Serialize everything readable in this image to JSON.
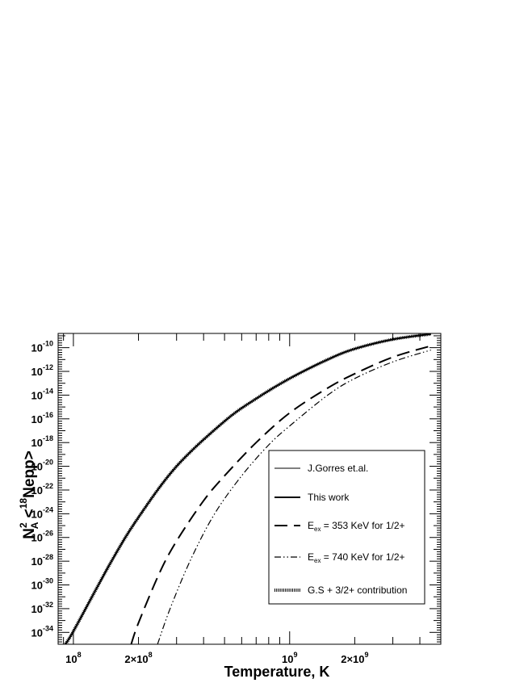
{
  "chart_data": {
    "type": "line",
    "xlabel": "Temperature, K",
    "ylabel_parts": {
      "N": "N",
      "sup2": "2",
      "subA": "A",
      "open": " <",
      "sup18": "18",
      "rest": "Nepp>"
    },
    "x_scale": "log",
    "y_scale": "log",
    "xlim": [
      85000000.0,
      5000000000.0
    ],
    "ylim_exp": [
      -35,
      -8.8
    ],
    "x_major_ticks": [
      {
        "value": 100000000.0,
        "label_base": "10",
        "label_exp": "8"
      },
      {
        "value": 200000000.0,
        "label_base": "2×10",
        "label_exp": "8"
      },
      {
        "value": 1000000000.0,
        "label_base": "10",
        "label_exp": "9"
      },
      {
        "value": 2000000000.0,
        "label_base": "2×10",
        "label_exp": "9"
      }
    ],
    "y_major_ticks": [
      {
        "exp": -34,
        "label_base": "10",
        "label_exp": "-34"
      },
      {
        "exp": -32,
        "label_base": "10",
        "label_exp": "-32"
      },
      {
        "exp": -30,
        "label_base": "10",
        "label_exp": "-30"
      },
      {
        "exp": -28,
        "label_base": "10",
        "label_exp": "-28"
      },
      {
        "exp": -26,
        "label_base": "10",
        "label_exp": "-26"
      },
      {
        "exp": -24,
        "label_base": "10",
        "label_exp": "-24"
      },
      {
        "exp": -22,
        "label_base": "10",
        "label_exp": "-22"
      },
      {
        "exp": -20,
        "label_base": "10",
        "label_exp": "-20"
      },
      {
        "exp": -18,
        "label_base": "10",
        "label_exp": "-18"
      },
      {
        "exp": -16,
        "label_base": "10",
        "label_exp": "-16"
      },
      {
        "exp": -14,
        "label_base": "10",
        "label_exp": "-14"
      },
      {
        "exp": -12,
        "label_base": "10",
        "label_exp": "-12"
      },
      {
        "exp": -10,
        "label_base": "10",
        "label_exp": "-10"
      }
    ],
    "legend_position": "center-right",
    "legend": [
      {
        "series": "gorres",
        "parts": [
          "J.Gorres et.al."
        ]
      },
      {
        "series": "thiswork",
        "parts": [
          "This work"
        ]
      },
      {
        "series": "e353",
        "parts": [
          "E",
          "ex",
          " = 353 KeV for 1/2+"
        ]
      },
      {
        "series": "e740",
        "parts": [
          "E",
          "ex",
          " = 740 KeV for 1/2+"
        ]
      },
      {
        "series": "gs",
        "parts": [
          "G.S + 3/2+ contribution"
        ]
      }
    ],
    "series": [
      {
        "id": "gorres",
        "style": "thin-solid",
        "x": [
          90000000.0,
          100000000.0,
          150000000.0,
          200000000.0,
          300000000.0,
          500000000.0,
          700000000.0,
          1000000000.0,
          1500000000.0,
          2000000000.0,
          3000000000.0,
          4500000000.0
        ],
        "y_exp": [
          -35.2,
          -33.9,
          -28.0,
          -24.3,
          -20.0,
          -16.2,
          -14.3,
          -12.6,
          -11.0,
          -10.1,
          -9.3,
          -8.85
        ]
      },
      {
        "id": "thiswork",
        "style": "thick-solid",
        "x": [
          90000000.0,
          100000000.0,
          150000000.0,
          200000000.0,
          300000000.0,
          500000000.0,
          700000000.0,
          1000000000.0,
          1500000000.0,
          2000000000.0,
          3000000000.0,
          4500000000.0
        ],
        "y_exp": [
          -35.2,
          -33.9,
          -28.0,
          -24.3,
          -20.0,
          -16.2,
          -14.3,
          -12.6,
          -11.0,
          -10.1,
          -9.3,
          -8.85
        ]
      },
      {
        "id": "gs",
        "style": "hatched",
        "x": [
          90000000.0,
          100000000.0,
          150000000.0,
          200000000.0,
          300000000.0,
          500000000.0,
          700000000.0,
          1000000000.0,
          1500000000.0,
          2000000000.0,
          3000000000.0,
          4500000000.0
        ],
        "y_exp": [
          -35.2,
          -33.9,
          -28.0,
          -24.3,
          -20.0,
          -16.2,
          -14.3,
          -12.6,
          -11.0,
          -10.1,
          -9.3,
          -8.85
        ]
      },
      {
        "id": "e353",
        "style": "long-dash",
        "x": [
          185000000.0,
          200000000.0,
          250000000.0,
          300000000.0,
          400000000.0,
          500000000.0,
          700000000.0,
          1000000000.0,
          1500000000.0,
          2000000000.0,
          3000000000.0,
          4500000000.0
        ],
        "y_exp": [
          -35.0,
          -33.2,
          -29.0,
          -26.3,
          -22.9,
          -20.8,
          -18.0,
          -15.5,
          -13.4,
          -12.2,
          -10.8,
          -9.85
        ]
      },
      {
        "id": "e740",
        "style": "dash-dot-dot",
        "x": [
          245000000.0,
          280000000.0,
          350000000.0,
          450000000.0,
          600000000.0,
          800000000.0,
          1000000000.0,
          1500000000.0,
          2000000000.0,
          3000000000.0,
          4500000000.0
        ],
        "y_exp": [
          -35.0,
          -32.0,
          -27.8,
          -24.0,
          -20.8,
          -18.2,
          -16.6,
          -14.0,
          -12.6,
          -11.2,
          -10.2
        ]
      }
    ]
  }
}
